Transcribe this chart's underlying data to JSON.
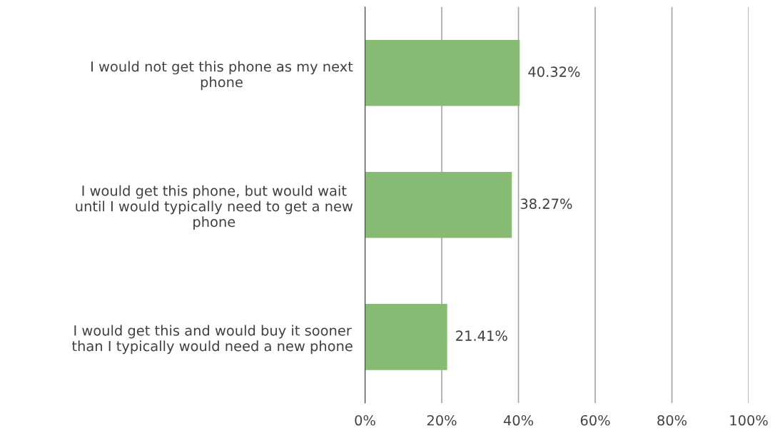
{
  "chart_data": {
    "type": "bar",
    "orientation": "horizontal",
    "categories": [
      "I would not get this phone as my next phone",
      "I would get this phone, but would wait until I would typically need to get a new phone",
      "I would get this and would buy it sooner than I typically would need a new phone"
    ],
    "values": [
      40.32,
      38.27,
      21.41
    ],
    "value_labels": [
      "40.32%",
      "38.27%",
      "21.41%"
    ],
    "color": "#87bb74",
    "xlim": [
      0,
      100
    ],
    "xticks": [
      {
        "value": 0,
        "label": "0%"
      },
      {
        "value": 20,
        "label": "20%"
      },
      {
        "value": 40,
        "label": "40%"
      },
      {
        "value": 60,
        "label": "60%"
      },
      {
        "value": 80,
        "label": "80%"
      },
      {
        "value": 100,
        "label": "100%"
      }
    ],
    "grid": "x"
  }
}
